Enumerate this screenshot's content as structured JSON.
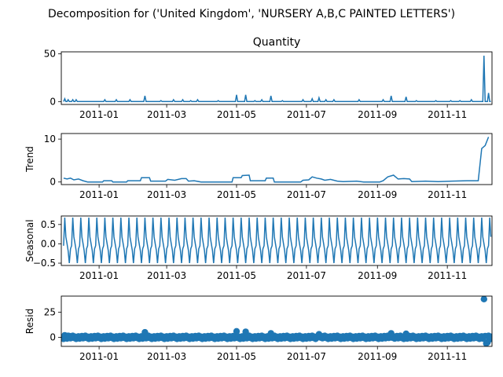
{
  "figure": {
    "suptitle": "Decomposition for ('United Kingdom', 'NURSERY A,B,C PAINTED LETTERS')",
    "line_color": "#1f77b4"
  },
  "chart_data": [
    {
      "type": "line",
      "title": "Quantity",
      "ylabel": "",
      "xlim": [
        "2011-12-01",
        "2011-12-09"
      ],
      "x_range": [
        "2010-12-01",
        "2011-12-09"
      ],
      "ylim": [
        -3,
        52
      ],
      "yticks": [
        0,
        50
      ],
      "xticks": [
        "2011-01",
        "2011-03",
        "2011-05",
        "2011-07",
        "2011-09",
        "2011-11"
      ],
      "series": [
        {
          "baseline": 0,
          "spikes": [
            [
              "2010-12-02",
              3
            ],
            [
              "2010-12-05",
              2
            ],
            [
              "2010-12-09",
              2
            ],
            [
              "2010-12-12",
              2
            ],
            [
              "2011-01-06",
              2
            ],
            [
              "2011-01-16",
              2
            ],
            [
              "2011-01-28",
              2
            ],
            [
              "2011-02-10",
              6
            ],
            [
              "2011-02-24",
              1
            ],
            [
              "2011-03-07",
              2
            ],
            [
              "2011-03-15",
              2
            ],
            [
              "2011-03-22",
              1
            ],
            [
              "2011-03-28",
              2
            ],
            [
              "2011-04-15",
              1
            ],
            [
              "2011-05-01",
              7
            ],
            [
              "2011-05-09",
              7
            ],
            [
              "2011-05-17",
              1
            ],
            [
              "2011-05-23",
              2
            ],
            [
              "2011-05-31",
              6
            ],
            [
              "2011-06-10",
              1
            ],
            [
              "2011-06-28",
              2
            ],
            [
              "2011-07-06",
              3
            ],
            [
              "2011-07-12",
              4
            ],
            [
              "2011-07-18",
              2
            ],
            [
              "2011-07-25",
              2
            ],
            [
              "2011-08-16",
              2
            ],
            [
              "2011-09-06",
              2
            ],
            [
              "2011-09-13",
              6
            ],
            [
              "2011-09-26",
              5
            ],
            [
              "2011-10-05",
              1
            ],
            [
              "2011-10-22",
              1
            ],
            [
              "2011-11-04",
              1
            ],
            [
              "2011-11-12",
              1
            ],
            [
              "2011-11-22",
              2
            ],
            [
              "2011-12-03",
              48
            ],
            [
              "2011-12-07",
              9
            ]
          ]
        }
      ]
    },
    {
      "type": "line",
      "title": "",
      "ylabel": "Trend",
      "ylim": [
        -0.6,
        11.3
      ],
      "yticks": [
        0,
        10
      ],
      "xticks": [
        "2011-01",
        "2011-03",
        "2011-05",
        "2011-07",
        "2011-09",
        "2011-11"
      ],
      "series": [
        {
          "points": [
            [
              "2010-12-01",
              0.9
            ],
            [
              "2010-12-04",
              0.7
            ],
            [
              "2010-12-07",
              0.9
            ],
            [
              "2010-12-10",
              0.5
            ],
            [
              "2010-12-14",
              0.7
            ],
            [
              "2010-12-18",
              0.3
            ],
            [
              "2010-12-22",
              0.0
            ],
            [
              "2011-01-04",
              0.0
            ],
            [
              "2011-01-05",
              0.3
            ],
            [
              "2011-01-12",
              0.3
            ],
            [
              "2011-01-13",
              0.0
            ],
            [
              "2011-01-25",
              0.0
            ],
            [
              "2011-01-26",
              0.3
            ],
            [
              "2011-02-06",
              0.3
            ],
            [
              "2011-02-07",
              1.0
            ],
            [
              "2011-02-14",
              1.0
            ],
            [
              "2011-02-15",
              0.2
            ],
            [
              "2011-02-28",
              0.2
            ],
            [
              "2011-03-02",
              0.6
            ],
            [
              "2011-03-08",
              0.4
            ],
            [
              "2011-03-14",
              0.8
            ],
            [
              "2011-03-18",
              0.8
            ],
            [
              "2011-03-20",
              0.2
            ],
            [
              "2011-03-25",
              0.3
            ],
            [
              "2011-03-31",
              0.0
            ],
            [
              "2011-04-27",
              0.0
            ],
            [
              "2011-04-28",
              1.0
            ],
            [
              "2011-05-05",
              1.0
            ],
            [
              "2011-05-06",
              1.5
            ],
            [
              "2011-05-12",
              1.6
            ],
            [
              "2011-05-13",
              0.3
            ],
            [
              "2011-05-26",
              0.3
            ],
            [
              "2011-05-27",
              0.9
            ],
            [
              "2011-06-02",
              0.9
            ],
            [
              "2011-06-03",
              0.0
            ],
            [
              "2011-06-26",
              0.0
            ],
            [
              "2011-06-28",
              0.4
            ],
            [
              "2011-07-03",
              0.5
            ],
            [
              "2011-07-06",
              1.2
            ],
            [
              "2011-07-10",
              0.9
            ],
            [
              "2011-07-14",
              0.7
            ],
            [
              "2011-07-17",
              0.4
            ],
            [
              "2011-07-22",
              0.6
            ],
            [
              "2011-07-28",
              0.2
            ],
            [
              "2011-08-02",
              0.1
            ],
            [
              "2011-08-14",
              0.2
            ],
            [
              "2011-08-20",
              0.0
            ],
            [
              "2011-09-03",
              0.0
            ],
            [
              "2011-09-06",
              0.3
            ],
            [
              "2011-09-10",
              1.2
            ],
            [
              "2011-09-15",
              1.6
            ],
            [
              "2011-09-19",
              0.7
            ],
            [
              "2011-09-24",
              0.8
            ],
            [
              "2011-09-29",
              0.7
            ],
            [
              "2011-10-01",
              0.1
            ],
            [
              "2011-10-13",
              0.2
            ],
            [
              "2011-10-24",
              0.1
            ],
            [
              "2011-11-05",
              0.2
            ],
            [
              "2011-11-18",
              0.3
            ],
            [
              "2011-11-28",
              0.3
            ],
            [
              "2011-12-01",
              7.8
            ],
            [
              "2011-12-04",
              8.5
            ],
            [
              "2011-12-07",
              10.5
            ]
          ]
        }
      ]
    },
    {
      "type": "line",
      "title": "",
      "ylabel": "Seasonal",
      "ylim": [
        -0.56,
        0.72
      ],
      "yticks": [
        -0.5,
        0.0,
        0.5
      ],
      "ytick_labels": [
        "−0.5",
        "0.0",
        "0.5"
      ],
      "xticks": [
        "2011-01",
        "2011-03",
        "2011-05",
        "2011-07",
        "2011-09",
        "2011-11"
      ],
      "series": [
        {
          "period_days": 7,
          "phase_start": "2010-12-01",
          "weekly_pattern": [
            -0.05,
            0.68,
            0.18,
            0.0,
            -0.18,
            -0.5,
            -0.13
          ]
        }
      ]
    },
    {
      "type": "scatter",
      "title": "",
      "ylabel": "Resid",
      "ylim": [
        -9,
        41
      ],
      "yticks": [
        0,
        25
      ],
      "xticks": [
        "2011-01",
        "2011-03",
        "2011-05",
        "2011-07",
        "2011-09",
        "2011-11"
      ],
      "series": [
        {
          "baseline_band": [
            -1.5,
            1.5
          ],
          "outliers": [
            [
              "2010-12-02",
              2
            ],
            [
              "2010-12-05",
              1.5
            ],
            [
              "2011-02-10",
              5
            ],
            [
              "2011-05-01",
              6
            ],
            [
              "2011-05-09",
              5.5
            ],
            [
              "2011-05-31",
              4
            ],
            [
              "2011-07-12",
              3
            ],
            [
              "2011-09-13",
              4
            ],
            [
              "2011-09-26",
              3.5
            ],
            [
              "2011-12-03",
              38
            ],
            [
              "2011-12-05",
              -6
            ],
            [
              "2011-12-06",
              -5
            ],
            [
              "2011-12-08",
              -2
            ]
          ]
        }
      ]
    }
  ]
}
